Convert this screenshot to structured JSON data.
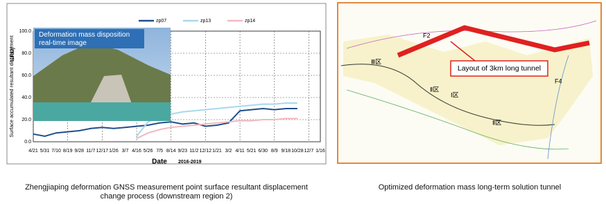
{
  "chart_data": {
    "type": "line",
    "x_label": "Date",
    "x_sublabel": "2016-2019",
    "y_label": "Surface accumulated resultant displacement",
    "y_unit": "/mm",
    "inset_label": "Deformation mass disposition real-time image",
    "categories": [
      "4/21",
      "5/31",
      "7/10",
      "8/19",
      "9/28",
      "11/7",
      "12/17",
      "1/26",
      "3/7",
      "4/16",
      "5/26",
      "7/5",
      "8/14",
      "9/23",
      "11/2",
      "12/12",
      "1/21",
      "3/2",
      "4/11",
      "5/21",
      "6/30",
      "8/9",
      "9/18",
      "10/28",
      "12/7",
      "1/16"
    ],
    "series": [
      {
        "name": "zp07",
        "color": "#1f4e8c",
        "values": [
          7,
          5,
          8,
          9,
          10,
          12,
          13,
          12,
          13,
          14,
          15,
          17,
          18,
          16,
          17,
          14,
          15,
          17,
          28,
          29,
          30,
          29,
          30,
          30,
          null,
          null
        ]
      },
      {
        "name": "zp13",
        "color": "#a8d8ea",
        "values": [
          null,
          null,
          null,
          null,
          null,
          null,
          null,
          null,
          null,
          5,
          18,
          22,
          25,
          27,
          28,
          29,
          30,
          31,
          32,
          33,
          34,
          34,
          35,
          35,
          null,
          null
        ]
      },
      {
        "name": "zp14",
        "color": "#f2b8c0",
        "values": [
          null,
          null,
          null,
          null,
          null,
          null,
          null,
          null,
          null,
          3,
          8,
          11,
          13,
          14,
          15,
          16,
          17,
          18,
          19,
          19,
          20,
          20,
          21,
          21,
          null,
          null
        ]
      }
    ],
    "ylim": [
      0,
      100
    ],
    "yticks": [
      {
        "value": 0,
        "label": "0.0"
      },
      {
        "value": 20,
        "label": "20.0"
      },
      {
        "value": 40,
        "label": "40.0"
      },
      {
        "value": 60,
        "label": "60.0"
      },
      {
        "value": 80,
        "label": "80.0"
      },
      {
        "value": 100,
        "label": "100.0"
      }
    ],
    "grid": true
  },
  "map": {
    "callout": "Layout of 3km long tunnel",
    "labels": [
      "F2",
      "F4",
      "Ⅲ区",
      "Ⅱ区",
      "Ⅰ区",
      "Ⅱ区"
    ]
  },
  "captions": {
    "left": "Zhengjiaping deformation GNSS measurement point surface resultant displacement change process (downstream region 2)",
    "right": "Optimized deformation mass long-term solution tunnel"
  }
}
